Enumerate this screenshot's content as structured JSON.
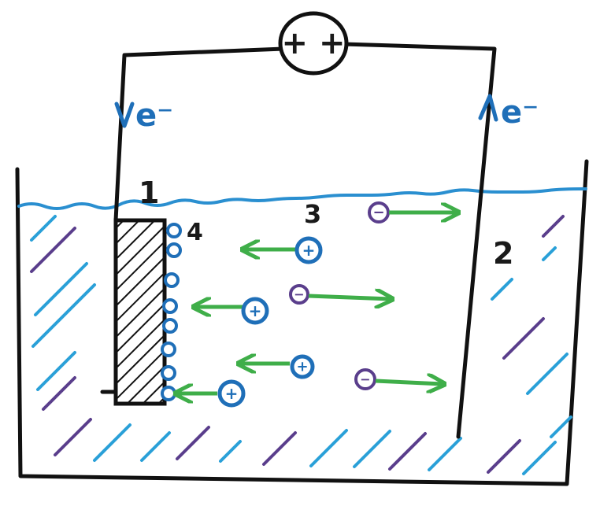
{
  "source": {
    "label": "+ +"
  },
  "labels": {
    "electrode_1": "1",
    "electrode_2": "2",
    "electrolyte": "3",
    "adsorbed_layer": "4"
  },
  "electron_flow": {
    "left": "e⁻",
    "right": "e⁻"
  },
  "ions": {
    "cation_symbol": "+",
    "anion_symbol": "−",
    "cation_color": "#1f6fb8",
    "anion_color": "#5a3e8c",
    "arrow_color": "#3fae49"
  },
  "colors": {
    "water": "#2a8fd0",
    "hatch_blue": "#2aa0d8",
    "hatch_purple": "#5a3e8c",
    "wire": "#111111"
  }
}
